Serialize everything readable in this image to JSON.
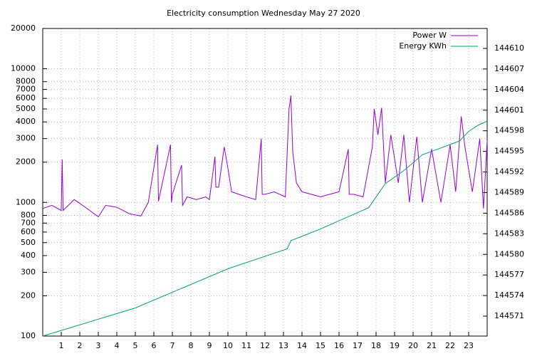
{
  "chart_data": {
    "type": "line",
    "title": "Electricity consumption Wednesday May 27 2020",
    "log_y": true,
    "grid": true,
    "legend": "top-right",
    "xlim": [
      0,
      24
    ],
    "xticks": [
      1,
      2,
      3,
      4,
      5,
      6,
      7,
      8,
      9,
      10,
      11,
      12,
      13,
      14,
      15,
      16,
      17,
      18,
      19,
      20,
      21,
      22,
      23
    ],
    "ylim": [
      100,
      20000
    ],
    "yticks": [
      100,
      200,
      300,
      400,
      500,
      600,
      700,
      800,
      1000,
      2000,
      3000,
      4000,
      5000,
      6000,
      7000,
      8000,
      10000,
      20000
    ],
    "y2lim": [
      144568.1,
      144612.9
    ],
    "y2ticks": [
      144571,
      144574,
      144577,
      144580,
      144583,
      144586,
      144589,
      144592,
      144595,
      144598,
      144601,
      144604,
      144607,
      144610
    ],
    "series": [
      {
        "name": "Power W",
        "color": "#9400d3",
        "x": [
          0,
          0.5,
          1.0,
          1.05,
          1.1,
          1.7,
          2.3,
          3.0,
          3.4,
          4.0,
          4.7,
          5.3,
          5.7,
          6.2,
          6.25,
          6.9,
          6.95,
          7.0,
          7.5,
          7.55,
          7.8,
          8.3,
          8.8,
          9.0,
          9.3,
          9.35,
          9.5,
          9.8,
          10.0,
          10.2,
          11.0,
          11.5,
          11.8,
          11.85,
          12.0,
          12.5,
          13.1,
          13.3,
          13.4,
          13.5,
          13.7,
          14.0,
          14.5,
          15.0,
          15.5,
          16.0,
          16.5,
          16.55,
          16.8,
          17.3,
          17.8,
          17.9,
          18.1,
          18.3,
          18.5,
          18.8,
          19.2,
          19.5,
          19.8,
          20.2,
          20.5,
          21.0,
          21.5,
          22.0,
          22.3,
          22.6,
          22.8,
          23.2,
          23.6,
          23.8,
          24.0
        ],
        "values": [
          900,
          950,
          870,
          2100,
          870,
          1050,
          920,
          780,
          950,
          920,
          820,
          790,
          1000,
          2700,
          1020,
          2700,
          1000,
          1150,
          1900,
          950,
          1100,
          1050,
          1100,
          1050,
          2200,
          1300,
          1300,
          2600,
          1800,
          1200,
          1100,
          1050,
          3000,
          1150,
          1150,
          1200,
          1100,
          5000,
          6300,
          2400,
          1400,
          1200,
          1150,
          1100,
          1150,
          1200,
          2500,
          1150,
          1150,
          1100,
          2600,
          5000,
          3200,
          5100,
          1400,
          3200,
          1400,
          3200,
          1000,
          3100,
          1000,
          2500,
          1000,
          2700,
          1200,
          4400,
          2600,
          1200,
          3000,
          900,
          2900
        ]
      },
      {
        "name": "Energy KWh",
        "color": "#009e73",
        "axis": "y2",
        "x": [
          0,
          5,
          10,
          13.2,
          13.4,
          15,
          17.6,
          18.5,
          19.5,
          20.5,
          21.5,
          22.5,
          23,
          23.5,
          24
        ],
        "values": [
          144568.1,
          144572.2,
          144577.9,
          144580.8,
          144582.0,
          144583.7,
          144586.8,
          144590.3,
          144592.2,
          144594.5,
          144595.5,
          144596.5,
          144597.9,
          144598.8,
          144599.4
        ]
      }
    ]
  }
}
